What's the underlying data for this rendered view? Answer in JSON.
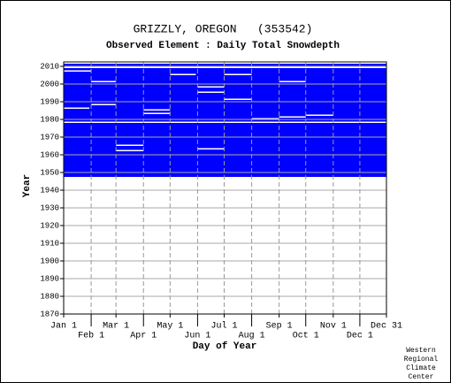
{
  "chart_data": {
    "type": "coverage",
    "title": "GRIZZLY, OREGON   (353542)",
    "subtitle": "Observed Element : Daily Total Snowdepth",
    "x_label": "Day of Year",
    "y_label": "Year",
    "credit": [
      "Western",
      "Regional",
      "Climate",
      "Center"
    ],
    "color": "#0000ff",
    "grid": true,
    "xlim": [
      1,
      365
    ],
    "xticks": [
      {
        "value": 1,
        "label": "Jan 1"
      },
      {
        "value": 32,
        "label": "Feb 1"
      },
      {
        "value": 60,
        "label": "Mar 1"
      },
      {
        "value": 91,
        "label": "Apr 1"
      },
      {
        "value": 121,
        "label": "May 1"
      },
      {
        "value": 152,
        "label": "Jun 1"
      },
      {
        "value": 182,
        "label": "Jul 1"
      },
      {
        "value": 213,
        "label": "Aug 1"
      },
      {
        "value": 244,
        "label": "Sep 1"
      },
      {
        "value": 274,
        "label": "Oct 1"
      },
      {
        "value": 305,
        "label": "Nov 1"
      },
      {
        "value": 335,
        "label": "Dec 1"
      },
      {
        "value": 365,
        "label": "Dec 31"
      }
    ],
    "ylim": [
      1870,
      2012.5
    ],
    "yticks": [
      1870,
      1880,
      1890,
      1900,
      1910,
      1920,
      1930,
      1940,
      1950,
      1960,
      1970,
      1980,
      1990,
      2000,
      2010
    ],
    "coverage": {
      "start_year": 1947.5,
      "end_year": 2011.5
    },
    "gaps": [
      {
        "year": 2009,
        "start": 1,
        "end": 365
      },
      {
        "year": 2007,
        "start": 1,
        "end": 32
      },
      {
        "year": 2005,
        "start": 121,
        "end": 150
      },
      {
        "year": 2005,
        "start": 182,
        "end": 213
      },
      {
        "year": 2001,
        "start": 32,
        "end": 60
      },
      {
        "year": 2001,
        "start": 244,
        "end": 274
      },
      {
        "year": 1998,
        "start": 152,
        "end": 182
      },
      {
        "year": 1995,
        "start": 152,
        "end": 182
      },
      {
        "year": 1991,
        "start": 182,
        "end": 213
      },
      {
        "year": 1988,
        "start": 32,
        "end": 60
      },
      {
        "year": 1986,
        "start": 1,
        "end": 30
      },
      {
        "year": 1985,
        "start": 91,
        "end": 121
      },
      {
        "year": 1983,
        "start": 91,
        "end": 121
      },
      {
        "year": 1982,
        "start": 274,
        "end": 305
      },
      {
        "year": 1981,
        "start": 244,
        "end": 274
      },
      {
        "year": 1980,
        "start": 213,
        "end": 244
      },
      {
        "year": 1978,
        "start": 1,
        "end": 365
      },
      {
        "year": 1965,
        "start": 60,
        "end": 91
      },
      {
        "year": 1963,
        "start": 152,
        "end": 182
      },
      {
        "year": 1962,
        "start": 60,
        "end": 91
      }
    ]
  }
}
